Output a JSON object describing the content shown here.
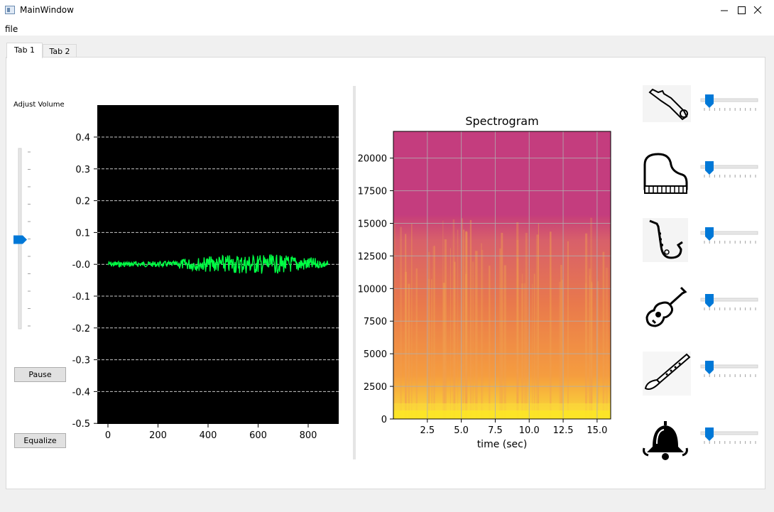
{
  "window": {
    "title": "MainWindow"
  },
  "menu": {
    "file_label": "file"
  },
  "tabs": [
    {
      "label": "Tab 1",
      "active": true
    },
    {
      "label": "Tab 2",
      "active": false
    }
  ],
  "volume": {
    "label": "Adjust Volume",
    "level": 0.5
  },
  "buttons": {
    "pause_label": "Pause",
    "equalize_label": "Equalize"
  },
  "waveform_plot": {
    "y_ticks": [
      "0.4",
      "0.3",
      "0.2",
      "0.1",
      "-0.0",
      "-0.1",
      "-0.2",
      "-0.3",
      "-0.4",
      "-0.5"
    ],
    "x_ticks": [
      "0",
      "200",
      "400",
      "600",
      "800"
    ],
    "background": "#000000",
    "trace_color": "#00ff44"
  },
  "chart_data": {
    "type": "heatmap",
    "title": "Spectrogram",
    "xlabel": "time (sec)",
    "ylabel": "",
    "x_ticks": [
      "2.5",
      "5.0",
      "7.5",
      "10.0",
      "12.5",
      "15.0"
    ],
    "y_ticks": [
      "0",
      "2500",
      "5000",
      "7500",
      "10000",
      "12500",
      "15000",
      "17500",
      "20000"
    ],
    "xlim": [
      0,
      16
    ],
    "ylim": [
      0,
      22050
    ],
    "grid": true,
    "colormap": "plasma"
  },
  "instruments": [
    {
      "icon": "bassoon-icon",
      "level": 0.15
    },
    {
      "icon": "piano-icon",
      "level": 0.15
    },
    {
      "icon": "saxophone-icon",
      "level": 0.15
    },
    {
      "icon": "guitar-icon",
      "level": 0.15
    },
    {
      "icon": "clarinet-icon",
      "level": 0.15
    },
    {
      "icon": "bell-icon",
      "level": 0.15
    }
  ]
}
